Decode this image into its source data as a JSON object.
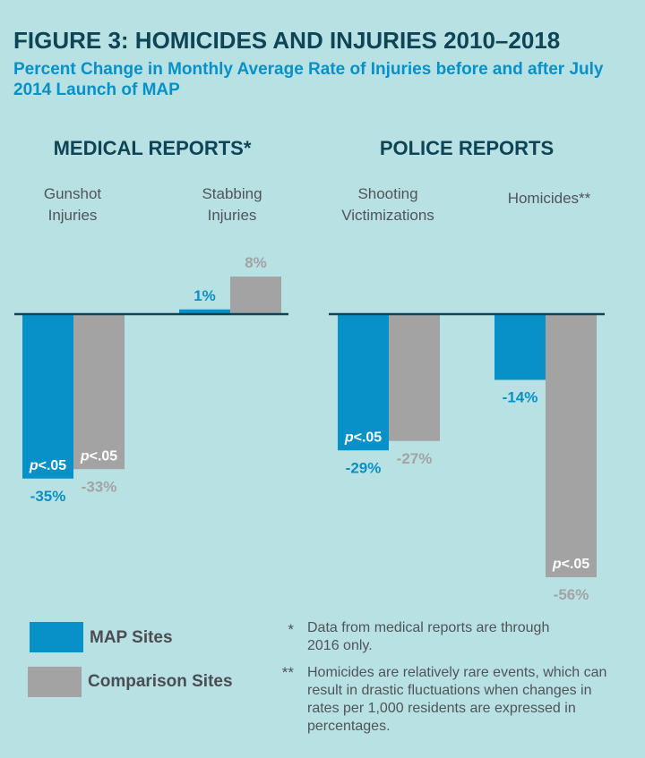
{
  "title": "FIGURE 3: HOMICIDES AND INJURIES 2010–2018",
  "subtitle": "Percent Change in Monthly Average Rate of Injuries before and after July 2014 Launch of MAP",
  "colors": {
    "map": "#0891c8",
    "comparison": "#a3a3a3",
    "baseline": "#0e4556",
    "map_label": "#0891c8",
    "comparison_label": "#a3a3a3",
    "pval_text": "#ffffff"
  },
  "legend": {
    "map_label": "MAP Sites",
    "comparison_label": "Comparison Sites"
  },
  "notes": [
    {
      "mark": "*",
      "text": "Data from medical reports are through 2016 only."
    },
    {
      "mark": "**",
      "text": "Homicides are relatively rare events, which can result in drastic fluctuations when changes in rates per 1,000 residents are expressed in percentages."
    }
  ],
  "chart_data": [
    {
      "type": "bar",
      "title": "MEDICAL REPORTS*",
      "categories": [
        "Gunshot Injuries",
        "Stabbing Injuries"
      ],
      "category_lines": [
        [
          "Gunshot",
          "Injuries"
        ],
        [
          "Stabbing",
          "Injuries"
        ]
      ],
      "series": [
        {
          "name": "MAP Sites",
          "values": [
            -35,
            1
          ],
          "labels": [
            "-35%",
            "1%"
          ],
          "significant": [
            true,
            false
          ]
        },
        {
          "name": "Comparison Sites",
          "values": [
            -33,
            8
          ],
          "labels": [
            "-33%",
            "8%"
          ],
          "significant": [
            true,
            false
          ]
        }
      ],
      "significance_label": "p<.05",
      "xlabel": "",
      "ylabel": "Percent change",
      "grid": false
    },
    {
      "type": "bar",
      "title": "POLICE REPORTS",
      "categories": [
        "Shooting Victimizations",
        "Homicides**"
      ],
      "category_lines": [
        [
          "Shooting",
          "Victimizations"
        ],
        [
          "Homicides**"
        ]
      ],
      "series": [
        {
          "name": "MAP Sites",
          "values": [
            -29,
            -14
          ],
          "labels": [
            "-29%",
            "-14%"
          ],
          "significant": [
            true,
            false
          ]
        },
        {
          "name": "Comparison Sites",
          "values": [
            -27,
            -56
          ],
          "labels": [
            "-27%",
            "-56%"
          ],
          "significant": [
            false,
            true
          ]
        }
      ],
      "significance_label": "p<.05",
      "xlabel": "",
      "ylabel": "Percent change",
      "grid": false
    }
  ]
}
